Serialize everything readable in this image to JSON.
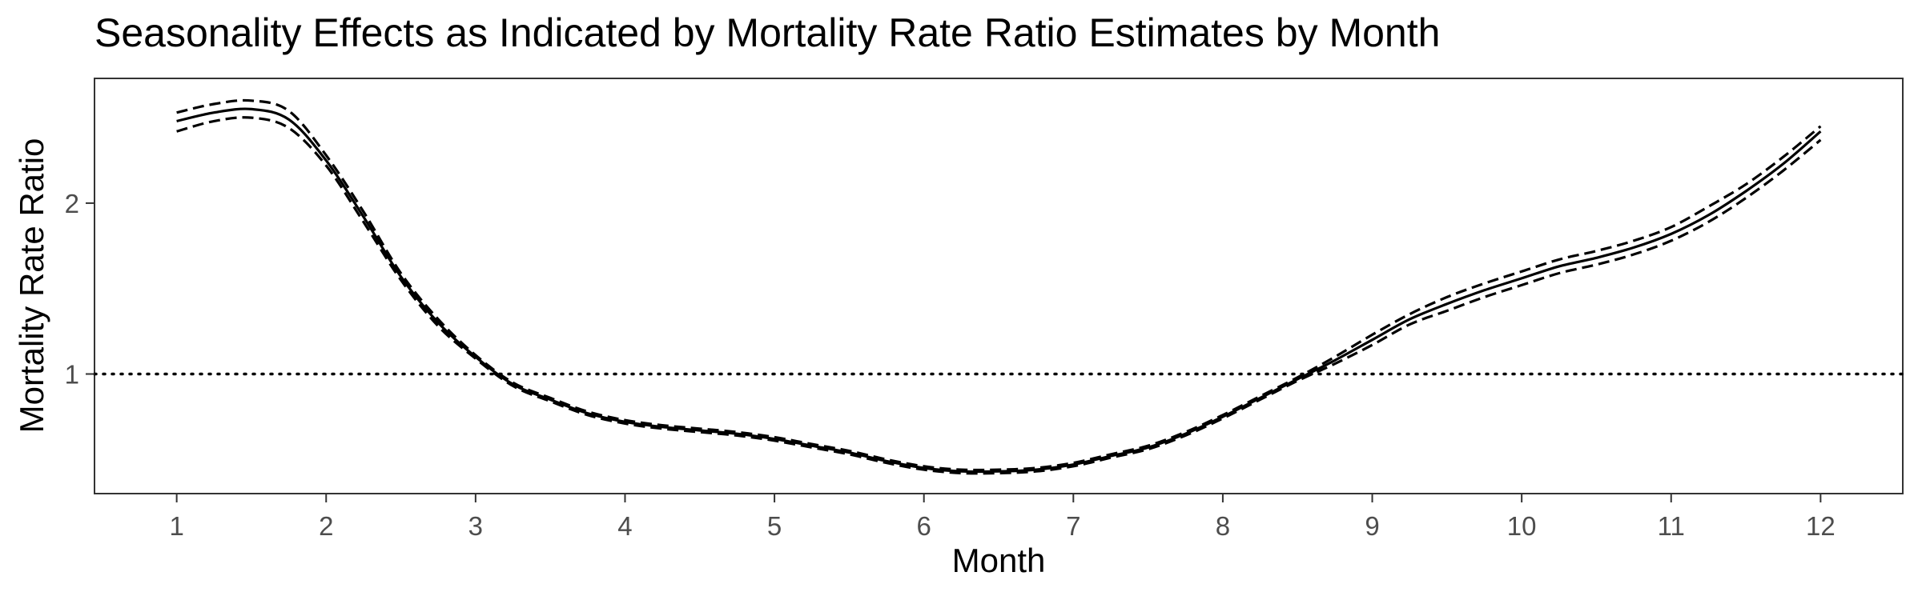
{
  "chart_data": {
    "type": "line",
    "title": "Seasonality Effects as Indicated by Mortality Rate Ratio Estimates by Month",
    "xlabel": "Month",
    "ylabel": "Mortality Rate Ratio",
    "xlim": [
      0.45,
      12.55
    ],
    "ylim": [
      0.3,
      2.73
    ],
    "x_ticks": [
      1,
      2,
      3,
      4,
      5,
      6,
      7,
      8,
      9,
      10,
      11,
      12
    ],
    "x_tick_labels": [
      "1",
      "2",
      "3",
      "4",
      "5",
      "6",
      "7",
      "8",
      "9",
      "10",
      "11",
      "12"
    ],
    "y_ticks": [
      1,
      2
    ],
    "y_tick_labels": [
      "1",
      "2"
    ],
    "reference_line": {
      "y": 1,
      "style": "dotted"
    },
    "grid": false,
    "legend": "none",
    "x": [
      1,
      1.25,
      1.5,
      1.75,
      2,
      2.25,
      2.5,
      2.75,
      3,
      3.25,
      3.5,
      3.75,
      4,
      4.25,
      4.5,
      4.75,
      5,
      5.25,
      5.5,
      5.75,
      6,
      6.25,
      6.5,
      6.75,
      7,
      7.25,
      7.5,
      7.75,
      8,
      8.25,
      8.5,
      8.75,
      9,
      9.25,
      9.5,
      9.75,
      10,
      10.25,
      10.5,
      10.75,
      11,
      11.25,
      11.5,
      11.75,
      12
    ],
    "series": [
      {
        "style": "solid",
        "values": [
          2.48,
          2.53,
          2.55,
          2.49,
          2.25,
          1.92,
          1.57,
          1.3,
          1.1,
          0.94,
          0.85,
          0.77,
          0.72,
          0.69,
          0.67,
          0.65,
          0.62,
          0.58,
          0.54,
          0.49,
          0.45,
          0.43,
          0.43,
          0.44,
          0.47,
          0.52,
          0.57,
          0.65,
          0.75,
          0.86,
          0.97,
          1.08,
          1.2,
          1.32,
          1.41,
          1.49,
          1.56,
          1.63,
          1.68,
          1.74,
          1.82,
          1.93,
          2.07,
          2.23,
          2.42
        ]
      },
      {
        "style": "dashed",
        "values": [
          2.53,
          2.58,
          2.6,
          2.54,
          2.28,
          1.95,
          1.59,
          1.32,
          1.11,
          0.95,
          0.86,
          0.78,
          0.73,
          0.7,
          0.68,
          0.66,
          0.63,
          0.59,
          0.55,
          0.5,
          0.46,
          0.44,
          0.44,
          0.45,
          0.48,
          0.53,
          0.58,
          0.66,
          0.76,
          0.87,
          0.98,
          1.1,
          1.23,
          1.35,
          1.45,
          1.53,
          1.6,
          1.67,
          1.72,
          1.78,
          1.86,
          1.98,
          2.11,
          2.27,
          2.45
        ]
      },
      {
        "style": "dashed",
        "values": [
          2.42,
          2.48,
          2.5,
          2.44,
          2.22,
          1.89,
          1.55,
          1.28,
          1.09,
          0.93,
          0.84,
          0.76,
          0.71,
          0.68,
          0.66,
          0.64,
          0.61,
          0.57,
          0.53,
          0.48,
          0.44,
          0.42,
          0.42,
          0.43,
          0.46,
          0.51,
          0.56,
          0.64,
          0.74,
          0.85,
          0.96,
          1.06,
          1.17,
          1.29,
          1.37,
          1.45,
          1.52,
          1.59,
          1.64,
          1.7,
          1.78,
          1.89,
          2.03,
          2.19,
          2.37
        ]
      }
    ]
  }
}
